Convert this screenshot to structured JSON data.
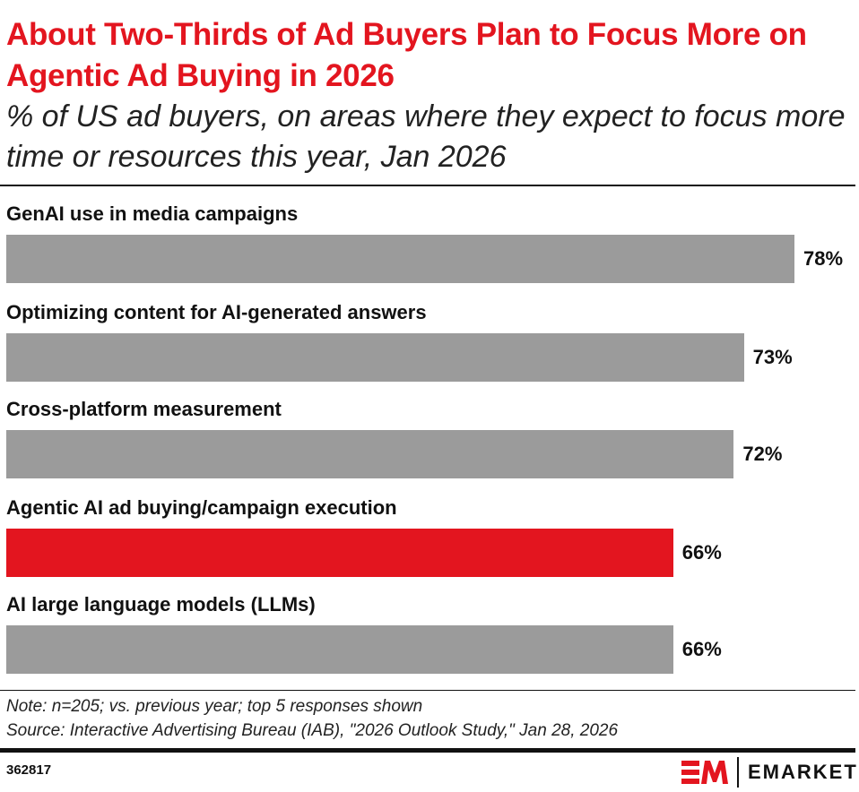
{
  "title": "About Two-Thirds of Ad Buyers Plan to Focus More on Agentic Ad Buying in 2026",
  "subtitle": "% of US ad buyers, on areas where they expect to focus more time or resources this year, Jan 2026",
  "chart_data": {
    "type": "bar",
    "orientation": "horizontal",
    "categories": [
      "GenAI use in media campaigns",
      "Optimizing content for AI-generated answers",
      "Cross-platform measurement",
      "Agentic AI ad buying/campaign execution",
      "AI large language models (LLMs)"
    ],
    "values": [
      78,
      73,
      72,
      66,
      66
    ],
    "data_labels": [
      "78%",
      "73%",
      "72%",
      "66%",
      "66%"
    ],
    "colors": [
      "#9b9b9b",
      "#9b9b9b",
      "#9b9b9b",
      "#e3151f",
      "#9b9b9b"
    ],
    "unit": "%",
    "grid": false
  },
  "note": "Note: n=205; vs. previous year; top 5 responses shown",
  "source": "Source: Interactive Advertising Bureau (IAB), \"2026 Outlook Study,\" Jan 28, 2026",
  "chart_id": "362817",
  "logo": {
    "mark": "EM",
    "brand": "EMARKETER",
    "color": "#e3151f"
  }
}
